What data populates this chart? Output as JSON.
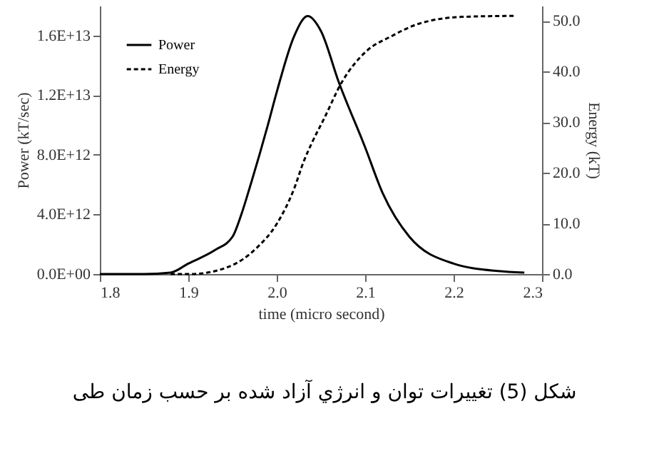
{
  "chart_data": {
    "type": "line",
    "xlabel": "time (micro second)",
    "ylabel": "Power (kT/sec)",
    "y2label": "Energy (kT)",
    "annotations": [
      "شکل (5) تغييرات توان و انرژي آزاد شده بر حسب زمان طی"
    ],
    "xlim": [
      1.8,
      2.3
    ],
    "xticks": [
      {
        "value": 1.8,
        "label": "1.8"
      },
      {
        "value": 1.9,
        "label": "1.9"
      },
      {
        "value": 2,
        "label": "2.0"
      },
      {
        "value": 2.1,
        "label": "2.1"
      },
      {
        "value": 2.2,
        "label": "2.2"
      },
      {
        "value": 2.3,
        "label": "2.3"
      }
    ],
    "ylim": [
      0,
      18000000000000
    ],
    "yticks": [
      {
        "value": 0,
        "label": "0.0E+00"
      },
      {
        "value": 4000000000000,
        "label": "4.0E+12"
      },
      {
        "value": 8000000000000,
        "label": "8.0E+12"
      },
      {
        "value": 12000000000000,
        "label": "1.2E+13"
      },
      {
        "value": 16000000000000,
        "label": "1.6E+13"
      }
    ],
    "y2lim": [
      0,
      53
    ],
    "y2ticks": [
      {
        "value": 0,
        "label": "0.0"
      },
      {
        "value": 10,
        "label": "10.0"
      },
      {
        "value": 20,
        "label": "20.0"
      },
      {
        "value": 30,
        "label": "30.0"
      },
      {
        "value": 40,
        "label": "40.0"
      },
      {
        "value": 50,
        "label": "50.0"
      }
    ],
    "legend": "top left",
    "grid": false,
    "marker": "none",
    "series": [
      {
        "name": "Power",
        "color": "#000000",
        "line_style": "solid",
        "x": [
          1.8,
          1.85,
          1.88,
          1.9,
          1.93,
          1.95,
          1.96,
          1.97,
          1.99,
          2.0,
          2.02,
          2.035,
          2.05,
          2.07,
          2.1,
          2.12,
          2.15,
          2.2,
          2.25,
          2.28
        ],
        "values": [
          0,
          0,
          100000000000,
          700000000000,
          1600000000000,
          2500000000000,
          4000000000000,
          5900000000000,
          10000000000000,
          12200000000000,
          16000000000000,
          17300000000000,
          16300000000000,
          12900000000000,
          8500000000000,
          5400000000000,
          2500000000000,
          700000000000,
          200000000000,
          100000000000
        ]
      },
      {
        "name": "Energy",
        "color": "#000000",
        "line_style": "dashed",
        "axis": "y2",
        "x": [
          1.88,
          1.903,
          1.945,
          1.977,
          2.0,
          2.02,
          2.03,
          2.04,
          2.053,
          2.074,
          2.1,
          2.13,
          2.16,
          2.21,
          2.27
        ],
        "values": [
          0,
          0,
          1.4,
          5.1,
          9.9,
          17,
          22,
          26,
          30.5,
          38,
          43.8,
          47,
          49.4,
          50.8,
          51
        ]
      }
    ]
  }
}
